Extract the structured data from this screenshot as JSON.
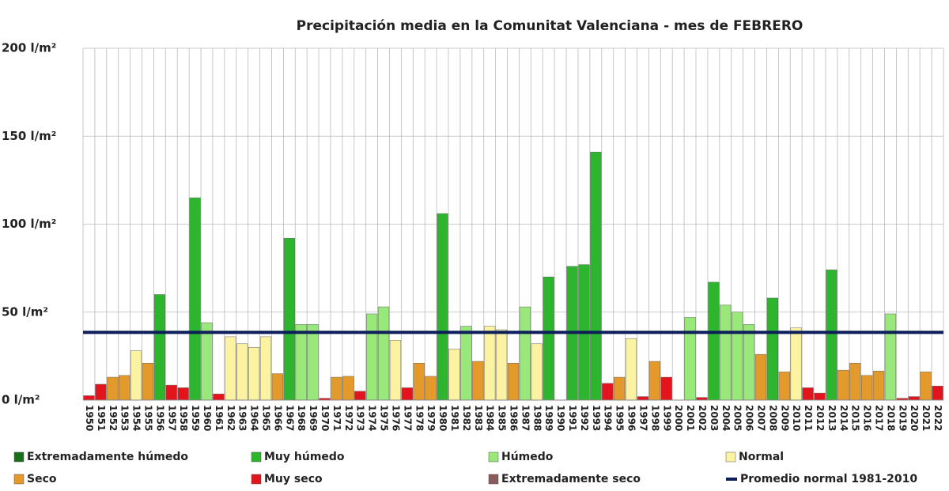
{
  "chart_data": {
    "type": "bar",
    "title": "Precipitación media en la Comunitat Valenciana - mes de FEBRERO",
    "categories": [
      "1950",
      "1951",
      "1952",
      "1953",
      "1954",
      "1955",
      "1956",
      "1957",
      "1958",
      "1959",
      "1960",
      "1961",
      "1962",
      "1963",
      "1964",
      "1965",
      "1966",
      "1967",
      "1968",
      "1969",
      "1970",
      "1971",
      "1972",
      "1973",
      "1974",
      "1975",
      "1976",
      "1977",
      "1978",
      "1979",
      "1980",
      "1981",
      "1982",
      "1983",
      "1984",
      "1985",
      "1986",
      "1987",
      "1988",
      "1989",
      "1990",
      "1991",
      "1992",
      "1993",
      "1994",
      "1995",
      "1996",
      "1997",
      "1998",
      "1999",
      "2000",
      "2001",
      "2002",
      "2003",
      "2004",
      "2005",
      "2006",
      "2007",
      "2008",
      "2009",
      "2010",
      "2011",
      "2012",
      "2013",
      "2014",
      "2015",
      "2016",
      "2017",
      "2018",
      "2019",
      "2020",
      "2021",
      "2022"
    ],
    "values": [
      2.5,
      9,
      13,
      14,
      28,
      21,
      60,
      8.5,
      7,
      115,
      44,
      3.5,
      36,
      32,
      30,
      36,
      15,
      92,
      43,
      43,
      1,
      13,
      13.5,
      5,
      49,
      53,
      34,
      7,
      21,
      13.5,
      106,
      29,
      42,
      22,
      42,
      40,
      21,
      53,
      32,
      70,
      0,
      76,
      77,
      141,
      9.5,
      13,
      35,
      2,
      22,
      13,
      0,
      47,
      1.5,
      67,
      54,
      50,
      43,
      26,
      58,
      16,
      41,
      7,
      4,
      74,
      17,
      21,
      14,
      16.5,
      49,
      1,
      2,
      16,
      8
    ],
    "colors": [
      "#e3141b",
      "#e3141b",
      "#e49a2b",
      "#e49a2b",
      "#fbf3a2",
      "#e49a2b",
      "#2db52d",
      "#e3141b",
      "#e3141b",
      "#2db52d",
      "#99e87a",
      "#e3141b",
      "#fbf3a2",
      "#fbf3a2",
      "#fbf3a2",
      "#fbf3a2",
      "#e49a2b",
      "#2db52d",
      "#99e87a",
      "#99e87a",
      "#e3141b",
      "#e49a2b",
      "#e49a2b",
      "#e3141b",
      "#99e87a",
      "#99e87a",
      "#fbf3a2",
      "#e3141b",
      "#e49a2b",
      "#e49a2b",
      "#2db52d",
      "#fbf3a2",
      "#99e87a",
      "#e49a2b",
      "#fbf3a2",
      "#fbf3a2",
      "#e49a2b",
      "#99e87a",
      "#fbf3a2",
      "#2db52d",
      "#e3141b",
      "#2db52d",
      "#2db52d",
      "#2db52d",
      "#e3141b",
      "#e49a2b",
      "#fbf3a2",
      "#e3141b",
      "#e49a2b",
      "#e3141b",
      "#e3141b",
      "#99e87a",
      "#e3141b",
      "#2db52d",
      "#99e87a",
      "#99e87a",
      "#99e87a",
      "#e49a2b",
      "#2db52d",
      "#e49a2b",
      "#fbf3a2",
      "#e3141b",
      "#e3141b",
      "#2db52d",
      "#e49a2b",
      "#e49a2b",
      "#e49a2b",
      "#e49a2b",
      "#99e87a",
      "#e3141b",
      "#e3141b",
      "#e49a2b",
      "#e3141b"
    ],
    "legend": [
      {
        "name": "Extremadamente húmedo",
        "color": "#1a6e1a"
      },
      {
        "name": "Muy húmedo",
        "color": "#2db52d"
      },
      {
        "name": "Húmedo",
        "color": "#99e87a"
      },
      {
        "name": "Normal",
        "color": "#fbf3a2"
      },
      {
        "name": "Seco",
        "color": "#e49a2b"
      },
      {
        "name": "Muy seco",
        "color": "#e3141b"
      },
      {
        "name": "Extremadamente seco",
        "color": "#8b5a5a"
      }
    ],
    "reference_line": {
      "name": "Promedio normal 1981-2010",
      "value": 38.5,
      "color": "#0d1e5a"
    },
    "ylim": [
      0,
      200
    ],
    "yticks": [
      {
        "value": 0,
        "label": "0 l/m²"
      },
      {
        "value": 50,
        "label": "50 l/m²"
      },
      {
        "value": 100,
        "label": "100 l/m²"
      },
      {
        "value": 150,
        "label": "150 l/m²"
      },
      {
        "value": 200,
        "label": "200 l/m²"
      }
    ],
    "grid": true
  }
}
